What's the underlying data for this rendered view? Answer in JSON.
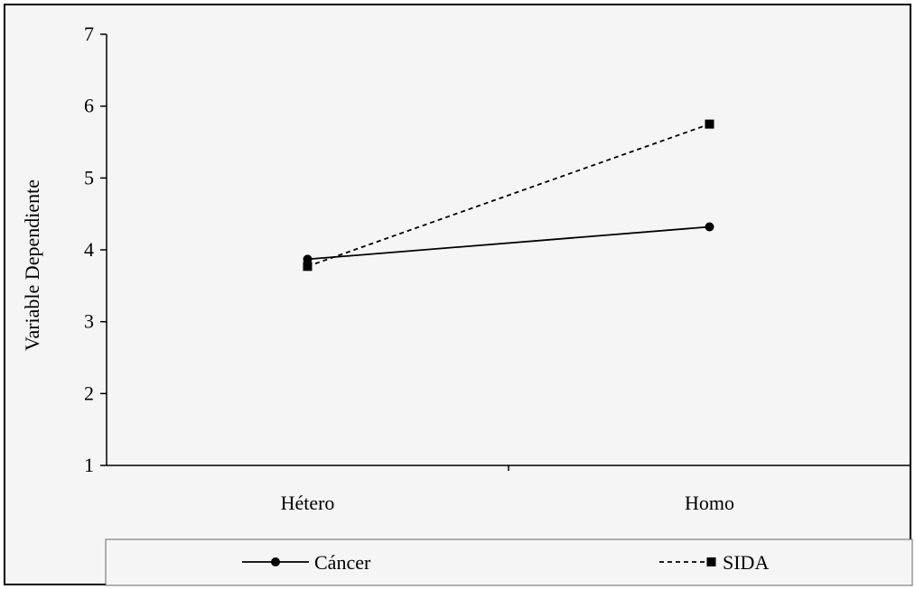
{
  "chart_data": {
    "type": "line",
    "categories": [
      "Hétero",
      "Homo"
    ],
    "ylabel": "Variable Dependiente",
    "ylim": [
      1,
      7
    ],
    "yticks": [
      1,
      2,
      3,
      4,
      5,
      6,
      7
    ],
    "grid": false,
    "legend": "bottom",
    "series": [
      {
        "name": "Cáncer",
        "values": [
          3.87,
          4.32
        ],
        "marker": "circle",
        "line": "solid",
        "color": "#000000"
      },
      {
        "name": "SIDA",
        "values": [
          3.77,
          5.75
        ],
        "marker": "square",
        "line": "dotted",
        "color": "#000000"
      }
    ]
  }
}
